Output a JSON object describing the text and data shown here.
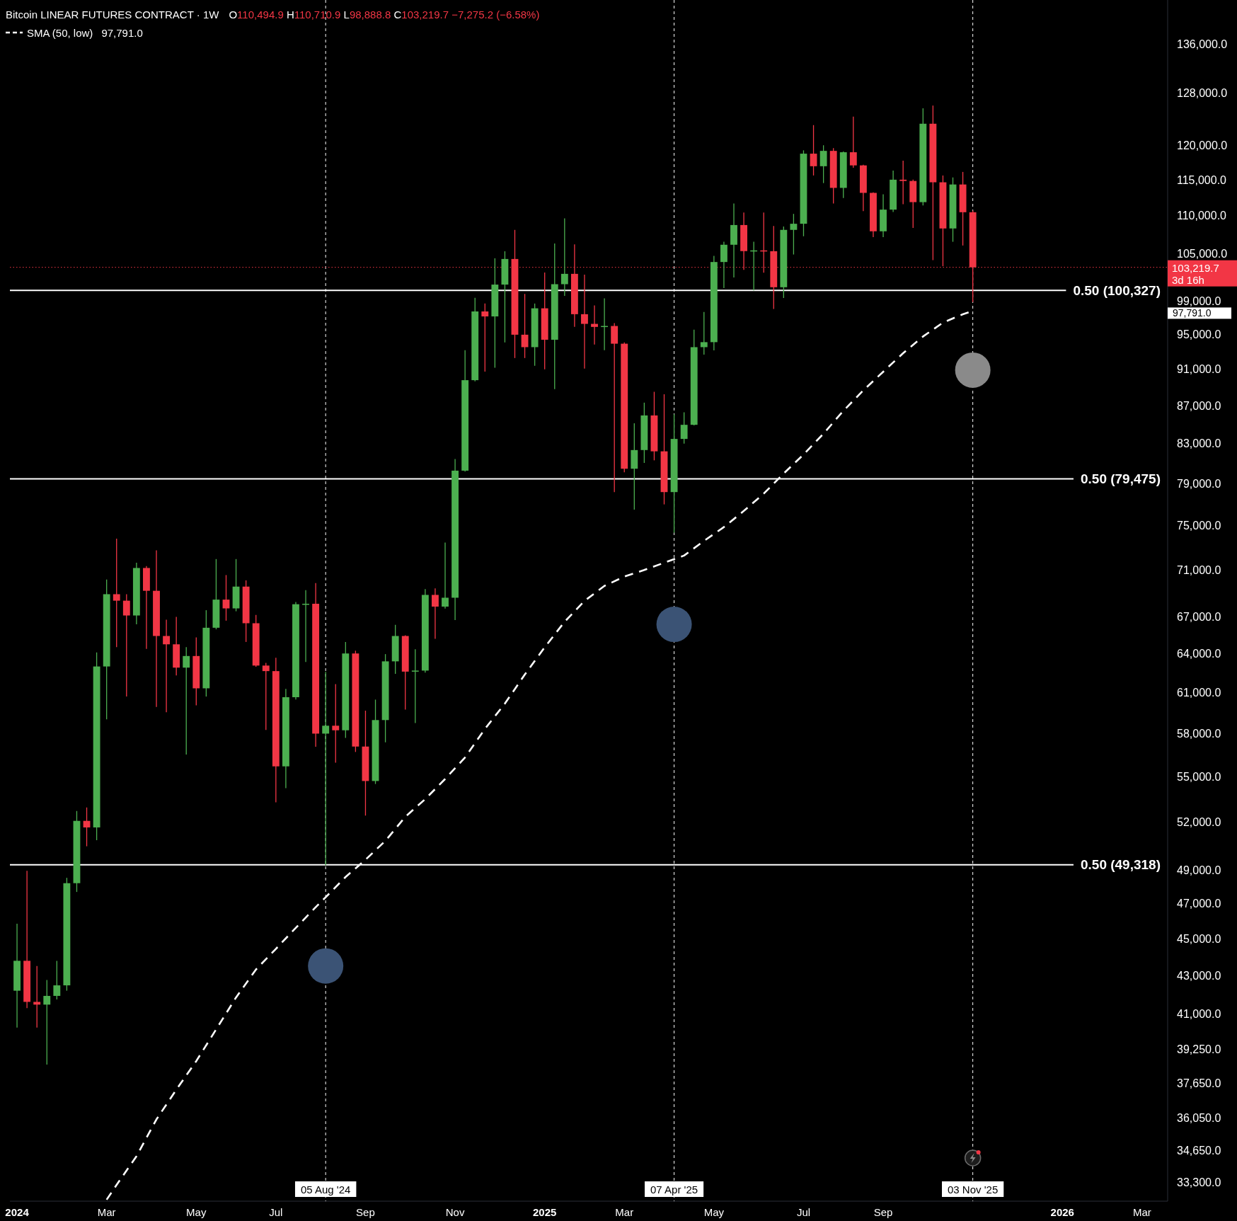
{
  "chart_data": {
    "type": "candlestick",
    "title": "Bitcoin LINEAR FUTURES CONTRACT · 1W",
    "subtitle": "O110,494.9 H110,710.9 L98,888.8 C103,219.7 −7,275.2 (−6.58%)",
    "x": [
      "2024-01-01",
      "2024-01-08",
      "2024-01-15",
      "2024-01-22",
      "2024-01-29",
      "2024-02-05",
      "2024-02-12",
      "2024-02-19",
      "2024-02-26",
      "2024-03-04",
      "2024-03-11",
      "2024-03-18",
      "2024-03-25",
      "2024-04-01",
      "2024-04-08",
      "2024-04-15",
      "2024-04-22",
      "2024-04-29",
      "2024-05-06",
      "2024-05-13",
      "2024-05-20",
      "2024-05-27",
      "2024-06-03",
      "2024-06-10",
      "2024-06-17",
      "2024-06-24",
      "2024-07-01",
      "2024-07-08",
      "2024-07-15",
      "2024-07-22",
      "2024-07-29",
      "2024-08-05",
      "2024-08-12",
      "2024-08-19",
      "2024-08-26",
      "2024-09-02",
      "2024-09-09",
      "2024-09-16",
      "2024-09-23",
      "2024-09-30",
      "2024-10-07",
      "2024-10-14",
      "2024-10-21",
      "2024-10-28",
      "2024-11-04",
      "2024-11-11",
      "2024-11-18",
      "2024-11-25",
      "2024-12-02",
      "2024-12-09",
      "2024-12-16",
      "2024-12-23",
      "2024-12-30",
      "2025-01-06",
      "2025-01-13",
      "2025-01-20",
      "2025-01-27",
      "2025-02-03",
      "2025-02-10",
      "2025-02-17",
      "2025-02-24",
      "2025-03-03",
      "2025-03-10",
      "2025-03-17",
      "2025-03-24",
      "2025-03-31",
      "2025-04-07",
      "2025-04-14",
      "2025-04-21",
      "2025-04-28",
      "2025-05-05",
      "2025-05-12",
      "2025-05-19",
      "2025-05-26",
      "2025-06-02",
      "2025-06-09",
      "2025-06-16",
      "2025-06-23",
      "2025-06-30",
      "2025-07-07",
      "2025-07-14",
      "2025-07-21",
      "2025-07-28",
      "2025-08-04",
      "2025-08-11",
      "2025-08-18",
      "2025-08-25",
      "2025-09-01",
      "2025-09-08",
      "2025-09-15",
      "2025-09-22",
      "2025-09-29",
      "2025-10-06",
      "2025-10-13",
      "2025-10-20",
      "2025-10-27",
      "2025-11-03"
    ],
    "ohlc": [
      [
        42210,
        45850,
        40330,
        43800
      ],
      [
        43800,
        48950,
        41310,
        41630
      ],
      [
        41630,
        43520,
        40330,
        41490
      ],
      [
        41490,
        42770,
        38530,
        41940
      ],
      [
        41940,
        43800,
        41760,
        42490
      ],
      [
        42490,
        48530,
        42210,
        48210
      ],
      [
        48210,
        52710,
        47690,
        52070
      ],
      [
        52070,
        52940,
        50460,
        51650
      ],
      [
        51650,
        64120,
        50840,
        63020
      ],
      [
        63020,
        70170,
        59030,
        68910
      ],
      [
        68910,
        73800,
        64540,
        68360
      ],
      [
        68360,
        68910,
        60720,
        67120
      ],
      [
        67120,
        71650,
        66390,
        71180
      ],
      [
        71180,
        71340,
        64400,
        69200
      ],
      [
        69200,
        72750,
        59940,
        65440
      ],
      [
        65440,
        66770,
        59550,
        64770
      ],
      [
        64770,
        67000,
        62330,
        62930
      ],
      [
        62930,
        64540,
        56520,
        63840
      ],
      [
        63840,
        65330,
        60060,
        61340
      ],
      [
        61340,
        67560,
        60720,
        66110
      ],
      [
        66110,
        71970,
        65980,
        68450
      ],
      [
        68450,
        70560,
        66690,
        67710
      ],
      [
        67710,
        71970,
        67470,
        69560
      ],
      [
        69560,
        70100,
        64960,
        66480
      ],
      [
        66480,
        67170,
        63000,
        63090
      ],
      [
        63090,
        63300,
        58260,
        62660
      ],
      [
        62660,
        63700,
        53280,
        55700
      ],
      [
        55700,
        61300,
        54220,
        60670
      ],
      [
        60670,
        68250,
        60500,
        68060
      ],
      [
        68060,
        69250,
        63370,
        68100
      ],
      [
        68100,
        69860,
        57060,
        58000
      ],
      [
        58000,
        62600,
        49300,
        58570
      ],
      [
        58570,
        61660,
        55950,
        58240
      ],
      [
        58240,
        64960,
        57690,
        64040
      ],
      [
        64040,
        64260,
        56700,
        57080
      ],
      [
        57080,
        59670,
        52410,
        54700
      ],
      [
        54700,
        60490,
        54500,
        58980
      ],
      [
        58980,
        63990,
        57380,
        63420
      ],
      [
        63420,
        66350,
        62450,
        65440
      ],
      [
        65440,
        65500,
        59750,
        62620
      ],
      [
        62620,
        64370,
        58760,
        62700
      ],
      [
        62700,
        69340,
        62540,
        68850
      ],
      [
        68850,
        69400,
        65210,
        67860
      ],
      [
        67860,
        73450,
        67700,
        68610
      ],
      [
        68610,
        81440,
        66740,
        80280
      ],
      [
        80280,
        93160,
        80190,
        89780
      ],
      [
        89780,
        99400,
        89650,
        97740
      ],
      [
        97740,
        98700,
        90730,
        97140
      ],
      [
        97140,
        104380,
        91170,
        101040
      ],
      [
        101040,
        105290,
        94070,
        104290
      ],
      [
        104290,
        108110,
        92270,
        94970
      ],
      [
        94970,
        99880,
        92270,
        93520
      ],
      [
        93520,
        98700,
        91390,
        98120
      ],
      [
        98120,
        102550,
        91000,
        94380
      ],
      [
        94380,
        106310,
        88800,
        101090
      ],
      [
        101090,
        109670,
        99640,
        102390
      ],
      [
        102390,
        106200,
        95890,
        97410
      ],
      [
        97410,
        102300,
        91080,
        96250
      ],
      [
        96250,
        98470,
        93830,
        95890
      ],
      [
        95890,
        99340,
        93160,
        96000
      ],
      [
        96000,
        96340,
        78180,
        93920
      ],
      [
        93920,
        94070,
        80110,
        80470
      ],
      [
        80470,
        85120,
        76510,
        82350
      ],
      [
        82350,
        87320,
        81050,
        85950
      ],
      [
        85950,
        88500,
        81310,
        82220
      ],
      [
        82220,
        88230,
        77000,
        78180
      ],
      [
        78180,
        86070,
        74350,
        83490
      ],
      [
        83490,
        86280,
        83010,
        84960
      ],
      [
        84960,
        95560,
        84900,
        93520
      ],
      [
        93520,
        97680,
        92660,
        94100
      ],
      [
        94100,
        104690,
        93140,
        103900
      ],
      [
        103900,
        106530,
        100600,
        106140
      ],
      [
        106140,
        111690,
        101940,
        108760
      ],
      [
        108760,
        110460,
        102900,
        105310
      ],
      [
        105310,
        106530,
        100320,
        105400
      ],
      [
        105400,
        110460,
        102540,
        105300
      ],
      [
        105300,
        108640,
        98030,
        100710
      ],
      [
        100710,
        108560,
        99380,
        108110
      ],
      [
        108110,
        110270,
        104870,
        108930
      ],
      [
        108930,
        119280,
        107260,
        118790
      ],
      [
        118790,
        123060,
        115630,
        116960
      ],
      [
        116960,
        120030,
        114550,
        119200
      ],
      [
        119200,
        119610,
        111690,
        113870
      ],
      [
        113870,
        119120,
        112460,
        119000
      ],
      [
        119000,
        124350,
        116730,
        117080
      ],
      [
        117080,
        117170,
        110650,
        113170
      ],
      [
        113170,
        113250,
        107150,
        107920
      ],
      [
        107920,
        112970,
        107150,
        110850
      ],
      [
        110850,
        116340,
        110530,
        115030
      ],
      [
        115030,
        117770,
        111600,
        114850
      ],
      [
        114850,
        115030,
        108370,
        111880
      ],
      [
        111880,
        125640,
        111420,
        123270
      ],
      [
        123270,
        126070,
        104140,
        114660
      ],
      [
        114660,
        115630,
        103360,
        108300
      ],
      [
        108300,
        115350,
        106530,
        114350
      ],
      [
        114350,
        116140,
        106040,
        110494.9
      ],
      [
        110494.9,
        110710.9,
        98888.8,
        103219.7
      ]
    ],
    "colors": [
      "#4caf50",
      "#f23645",
      "#f23645",
      "#4caf50",
      "#4caf50",
      "#4caf50",
      "#4caf50",
      "#f23645",
      "#4caf50",
      "#4caf50",
      "#f23645",
      "#f23645",
      "#4caf50",
      "#f23645",
      "#f23645",
      "#f23645",
      "#f23645",
      "#4caf50",
      "#f23645",
      "#4caf50",
      "#4caf50",
      "#f23645",
      "#4caf50",
      "#f23645",
      "#f23645",
      "#f23645",
      "#f23645",
      "#4caf50",
      "#4caf50",
      "#4caf50",
      "#f23645",
      "#4caf50",
      "#f23645",
      "#4caf50",
      "#f23645",
      "#f23645",
      "#4caf50",
      "#4caf50",
      "#4caf50",
      "#f23645",
      "#4caf50",
      "#4caf50",
      "#f23645",
      "#4caf50",
      "#4caf50",
      "#4caf50",
      "#4caf50",
      "#f23645",
      "#4caf50",
      "#4caf50",
      "#f23645",
      "#f23645",
      "#4caf50",
      "#f23645",
      "#4caf50",
      "#4caf50",
      "#f23645",
      "#f23645",
      "#f23645",
      "#4caf50",
      "#f23645",
      "#f23645",
      "#4caf50",
      "#4caf50",
      "#f23645",
      "#f23645",
      "#4caf50",
      "#4caf50",
      "#4caf50",
      "#4caf50",
      "#4caf50",
      "#4caf50",
      "#4caf50",
      "#f23645",
      "#4caf50",
      "#f23645",
      "#f23645",
      "#4caf50",
      "#4caf50",
      "#4caf50",
      "#f23645",
      "#4caf50",
      "#f23645",
      "#4caf50",
      "#f23645",
      "#f23645",
      "#f23645",
      "#4caf50",
      "#4caf50",
      "#f23645",
      "#f23645",
      "#4caf50",
      "#f23645",
      "#f23645",
      "#4caf50",
      "#f23645",
      "#f23645"
    ],
    "series": [
      {
        "name": "SMA (50, low)",
        "type": "line",
        "color": "#ffffff",
        "line_style": "dashed",
        "x": [
          "2024-03-04",
          "2024-03-11",
          "2024-03-25",
          "2024-04-08",
          "2024-04-22",
          "2024-05-06",
          "2024-05-20",
          "2024-06-03",
          "2024-06-17",
          "2024-07-01",
          "2024-07-15",
          "2024-07-29",
          "2024-08-05",
          "2024-08-19",
          "2024-09-02",
          "2024-09-16",
          "2024-09-30",
          "2024-10-14",
          "2024-10-28",
          "2024-11-11",
          "2024-11-25",
          "2024-12-09",
          "2024-12-23",
          "2025-01-06",
          "2025-01-20",
          "2025-02-03",
          "2025-02-17",
          "2025-03-03",
          "2025-03-17",
          "2025-03-31",
          "2025-04-14",
          "2025-04-28",
          "2025-05-12",
          "2025-05-26",
          "2025-06-09",
          "2025-06-23",
          "2025-07-07",
          "2025-07-21",
          "2025-08-04",
          "2025-08-18",
          "2025-09-01",
          "2025-09-15",
          "2025-09-29",
          "2025-10-13",
          "2025-10-27",
          "2025-11-03"
        ],
        "values": [
          32600,
          33200,
          34400,
          36000,
          37350,
          38690,
          40240,
          41860,
          43330,
          44450,
          45620,
          46800,
          47380,
          48580,
          49630,
          50800,
          52330,
          53490,
          54840,
          56320,
          58340,
          60190,
          62390,
          64530,
          66600,
          68340,
          69620,
          70430,
          71000,
          71640,
          72280,
          73600,
          74870,
          76380,
          78030,
          79990,
          81900,
          84030,
          86440,
          88650,
          90720,
          92820,
          94760,
          96400,
          97400,
          97791
        ]
      },
      {
        "type": "scatter",
        "marker": "circle",
        "x": [
          "2024-08-05",
          "2025-04-07",
          "2025-11-03"
        ],
        "values": [
          43520,
          66390,
          90900
        ],
        "colors": [
          "#3b5375",
          "#3b5375",
          "#8a8a8a"
        ]
      }
    ],
    "xlim": [
      "2023-12-27",
      "2026-03-20"
    ],
    "xticks": [
      {
        "value": "2024-01-01",
        "label": "2024"
      },
      {
        "value": "2024-03-04",
        "label": "Mar"
      },
      {
        "value": "2024-05-06",
        "label": "May"
      },
      {
        "value": "2024-07-01",
        "label": "Jul"
      },
      {
        "value": "2024-09-02",
        "label": "Sep"
      },
      {
        "value": "2024-11-04",
        "label": "Nov"
      },
      {
        "value": "2025-01-06",
        "label": "2025"
      },
      {
        "value": "2025-03-03",
        "label": "Mar"
      },
      {
        "value": "2025-05-05",
        "label": "May"
      },
      {
        "value": "2025-07-07",
        "label": "Jul"
      },
      {
        "value": "2025-09-01",
        "label": "Sep"
      },
      {
        "value": "2026-01-05",
        "label": "2026"
      },
      {
        "value": "2026-03-02",
        "label": "Mar"
      }
    ],
    "ylim": [
      32540,
      143640
    ],
    "log": true,
    "yticks": [
      {
        "value": 136000,
        "label": "136,000.0"
      },
      {
        "value": 128000,
        "label": "128,000.0"
      },
      {
        "value": 120000,
        "label": "120,000.0"
      },
      {
        "value": 115000,
        "label": "115,000.0"
      },
      {
        "value": 110000,
        "label": "110,000.0"
      },
      {
        "value": 105000,
        "label": "105,000.0"
      },
      {
        "value": 99000,
        "label": "99,000.0"
      },
      {
        "value": 95000,
        "label": "95,000.0"
      },
      {
        "value": 91000,
        "label": "91,000.0"
      },
      {
        "value": 87000,
        "label": "87,000.0"
      },
      {
        "value": 83000,
        "label": "83,000.0"
      },
      {
        "value": 79000,
        "label": "79,000.0"
      },
      {
        "value": 75000,
        "label": "75,000.0"
      },
      {
        "value": 71000,
        "label": "71,000.0"
      },
      {
        "value": 67000,
        "label": "67,000.0"
      },
      {
        "value": 64000,
        "label": "64,000.0"
      },
      {
        "value": 61000,
        "label": "61,000.0"
      },
      {
        "value": 58000,
        "label": "58,000.0"
      },
      {
        "value": 55000,
        "label": "55,000.0"
      },
      {
        "value": 52000,
        "label": "52,000.0"
      },
      {
        "value": 49000,
        "label": "49,000.0"
      },
      {
        "value": 47000,
        "label": "47,000.0"
      },
      {
        "value": 45000,
        "label": "45,000.0"
      },
      {
        "value": 43000,
        "label": "43,000.0"
      },
      {
        "value": 41000,
        "label": "41,000.0"
      },
      {
        "value": 39250,
        "label": "39,250.0"
      },
      {
        "value": 37650,
        "label": "37,650.0"
      },
      {
        "value": 36050,
        "label": "36,050.0"
      },
      {
        "value": 34650,
        "label": "34,650.0"
      },
      {
        "value": 33300,
        "label": "33,300.0"
      }
    ],
    "legend": "top left",
    "ref_lines": [
      {
        "axis": "x",
        "value": "2024-08-05",
        "label": "05 Aug '24",
        "color": "#ffffff",
        "line_style": "dashed"
      },
      {
        "axis": "x",
        "value": "2025-04-07",
        "label": "07 Apr '25",
        "color": "#ffffff",
        "line_style": "dashed"
      },
      {
        "axis": "x",
        "value": "2025-11-03",
        "label": "03 Nov '25",
        "color": "#ffffff",
        "line_style": "dashed"
      },
      {
        "axis": "y",
        "value": 100327,
        "label": "0.50 (100,327)",
        "color": "#ffffff",
        "line_style": "solid"
      },
      {
        "axis": "y",
        "value": 79475,
        "label": "0.50 (79,475)",
        "color": "#ffffff",
        "line_style": "solid"
      },
      {
        "axis": "y",
        "value": 49318,
        "label": "0.50 (49,318)",
        "color": "#ffffff",
        "line_style": "solid"
      },
      {
        "axis": "y",
        "value": 103219.7,
        "label": "103,219.7\n3d 16h",
        "color": "#f23645",
        "line_style": "dotted"
      }
    ],
    "annotations": [
      "97,791.0",
      "97,791.0"
    ]
  }
}
